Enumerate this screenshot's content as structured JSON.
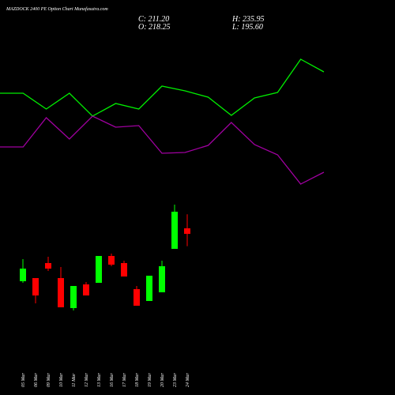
{
  "chart_data": [
    {
      "type": "candlestick",
      "title": "MAZDOCK 2400 PE Option Chart Munafasutra.com",
      "ohlc_labels": [
        "C: 211.20",
        "O: 218.25",
        "H: 235.95",
        "L: 195.60"
      ],
      "categories": [
        "05 Mar",
        "06 Mar",
        "09 Mar",
        "10 Mar",
        "11 Mar",
        "12 Mar",
        "13 Mar",
        "16 Mar",
        "17 Mar",
        "18 Mar",
        "19 Mar",
        "20 Mar",
        "23 Mar",
        "24 Mar"
      ],
      "open": [
        151.25,
        155.25,
        174.25,
        155.25,
        117.25,
        147.25,
        149.25,
        183.25,
        174.25,
        141.25,
        126.25,
        137.25,
        192.25,
        218.25
      ],
      "high": [
        179.25,
        155.25,
        182.25,
        169.25,
        145.25,
        150.25,
        183.25,
        186.25,
        177.25,
        145.25,
        158.25,
        177.25,
        248.25,
        235.95
      ],
      "low": [
        149.25,
        123.25,
        164.25,
        118.25,
        114.25,
        133.25,
        149.25,
        170.25,
        157.25,
        120.25,
        126.25,
        137.25,
        192.25,
        195.6
      ],
      "close": [
        167.25,
        133.25,
        167.25,
        118.25,
        145.25,
        133.25,
        183.25,
        172.25,
        157.25,
        120.25,
        158.25,
        170.25,
        239.25,
        211.2
      ],
      "up_color": "#00ff00",
      "down_color": "#ff0000",
      "ylim": [
        50,
        300
      ]
    },
    {
      "type": "line",
      "x": [
        0,
        1,
        2,
        3,
        4,
        5,
        6,
        7,
        8,
        9,
        10,
        11,
        12,
        13,
        14
      ],
      "series": [
        {
          "color": "#00ee00",
          "values": [
            382,
            382,
            362,
            382,
            353,
            369,
            362,
            391,
            385,
            377,
            354,
            376,
            383,
            425,
            409
          ]
        },
        {
          "color": "#a000a0",
          "values": [
            314,
            314,
            351,
            324,
            353,
            339,
            341,
            306,
            307,
            316,
            345,
            317,
            304,
            267,
            282
          ]
        }
      ],
      "xlim": [
        0,
        14.07
      ],
      "ylim": [
        0,
        500
      ]
    }
  ]
}
